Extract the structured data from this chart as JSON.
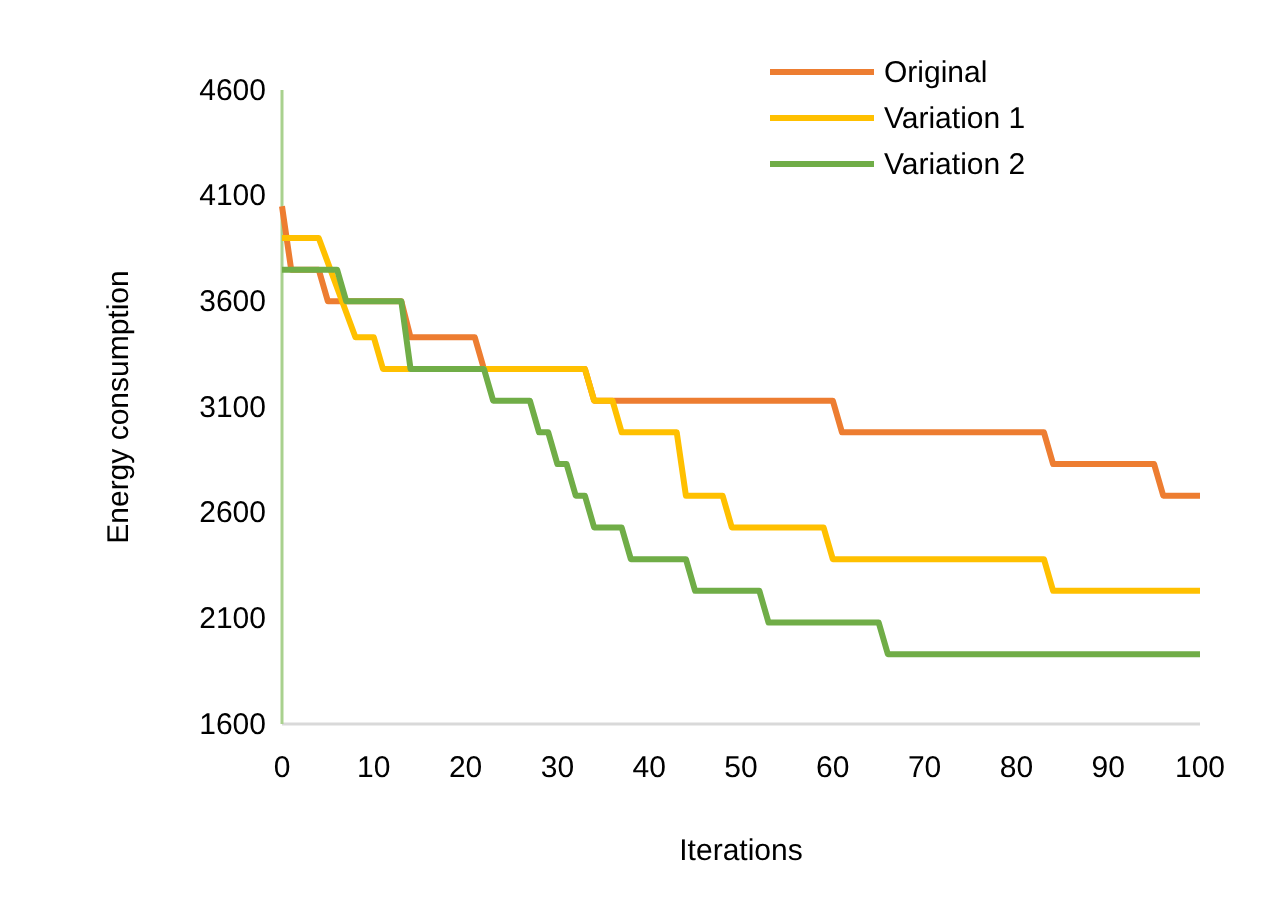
{
  "chart_data": {
    "type": "line",
    "xlabel": "Iterations",
    "ylabel": "Energy consumption",
    "xlim": [
      0,
      100
    ],
    "xticks": [
      0,
      10,
      20,
      30,
      40,
      50,
      60,
      70,
      80,
      90,
      100
    ],
    "ylim": [
      1600,
      4600
    ],
    "yticks": [
      1600,
      2100,
      2600,
      3100,
      3600,
      4100,
      4600
    ],
    "grid": false,
    "legend": "top right",
    "marker": "none",
    "line_style": "solid",
    "series": [
      {
        "name": "Original",
        "color": "#ed7d31",
        "x": [
          0,
          1,
          4,
          5,
          13,
          14,
          21,
          22,
          33,
          34,
          60,
          61,
          83,
          84,
          95,
          96,
          100
        ],
        "values": [
          4050,
          3750,
          3750,
          3600,
          3600,
          3430,
          3430,
          3280,
          3280,
          3130,
          3130,
          2980,
          2980,
          2830,
          2830,
          2680,
          2680
        ]
      },
      {
        "name": "Variation 1",
        "color": "#ffc000",
        "x": [
          0,
          4,
          8,
          10,
          11,
          33,
          34,
          36,
          37,
          43,
          44,
          48,
          49,
          59,
          60,
          83,
          84,
          100
        ],
        "values": [
          3900,
          3900,
          3430,
          3430,
          3280,
          3280,
          3130,
          3130,
          2980,
          2980,
          2680,
          2680,
          2530,
          2530,
          2380,
          2380,
          2230,
          2230
        ]
      },
      {
        "name": "Variation 2",
        "color": "#70ad47",
        "x": [
          0,
          6,
          7,
          13,
          14,
          22,
          23,
          27,
          28,
          29,
          30,
          31,
          32,
          33,
          34,
          37,
          38,
          44,
          45,
          52,
          53,
          65,
          66,
          100
        ],
        "values": [
          3750,
          3750,
          3600,
          3600,
          3280,
          3280,
          3130,
          3130,
          2980,
          2980,
          2830,
          2830,
          2680,
          2680,
          2530,
          2530,
          2380,
          2380,
          2230,
          2230,
          2080,
          2080,
          1930,
          1930
        ]
      }
    ]
  }
}
